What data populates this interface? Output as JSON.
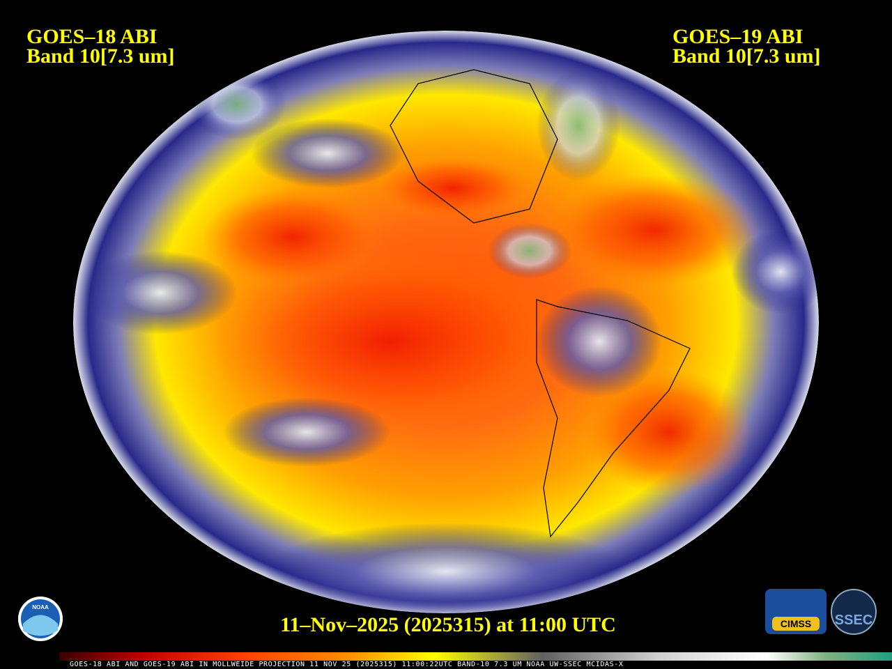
{
  "header": {
    "left": {
      "satellite": "GOES–18 ABI",
      "band": "Band 10[7.3 um]"
    },
    "right": {
      "satellite": "GOES–19 ABI",
      "band": "Band 10[7.3 um]"
    }
  },
  "timestamp": "11–Nov–2025 (2025315) at 11:00 UTC",
  "color_bar": {
    "caption": "GOES-18 ABI AND GOES-19 ABI IN MOLLWEIDE PROJECTION 11 NOV 25 (2025315) 11:00:22UTC BAND-10 7.3 UM NOAA UW-SSEC MCIDAS-X"
  },
  "logos": {
    "noaa": "NOAA",
    "cimss": "CIMSS",
    "ssec": "SSEC"
  }
}
